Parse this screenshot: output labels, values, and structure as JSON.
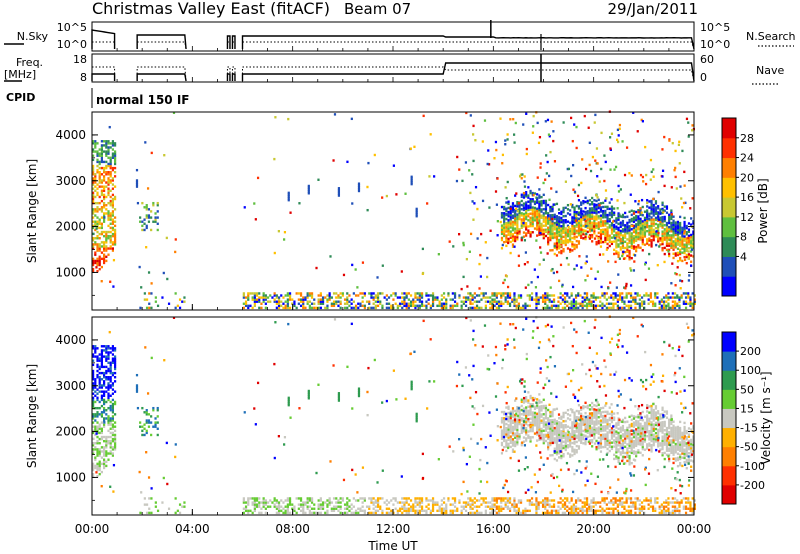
{
  "header": {
    "station": "Christmas Valley East (fitACF)",
    "beam": "Beam 07",
    "date": "29/Jan/2011"
  },
  "noise_panel": {
    "left_label": "N.Sky",
    "left_ticks": [
      "10^5",
      "10^0"
    ],
    "right_ticks": [
      "10^5",
      "10^0"
    ],
    "right_label": "N.Search"
  },
  "freq_panel": {
    "left_label_1": "Freq.",
    "left_label_2": "[MHz]",
    "left_ticks": [
      "18",
      "8"
    ],
    "right_ticks": [
      "60",
      "0"
    ],
    "right_label": "Nave"
  },
  "cpid": {
    "label": "CPID",
    "value": "normal 150 IF"
  },
  "x_axis": {
    "label": "Time UT",
    "ticks": [
      "00:00",
      "04:00",
      "08:00",
      "12:00",
      "16:00",
      "20:00",
      "00:00"
    ]
  },
  "colors": {
    "power": [
      "#0000ff",
      "#1f4fb8",
      "#2e8b57",
      "#5fbf3f",
      "#c8c832",
      "#ffc000",
      "#ff7f00",
      "#ff3000",
      "#e00000"
    ],
    "velocity": [
      "#0000ff",
      "#1e6fb8",
      "#2e9b4f",
      "#66cc33",
      "#c8c8c0",
      "#ffb000",
      "#ff7f00",
      "#ff3000",
      "#e00000"
    ]
  },
  "chart_data": [
    {
      "type": "heatmap",
      "name": "power-panel",
      "xlabel": "",
      "ylabel": "Slant Range [km]",
      "yticks": [
        "4000",
        "3000",
        "2000",
        "1000"
      ],
      "xlim_hours": [
        0,
        24
      ],
      "ylim_km": [
        180,
        4500
      ],
      "colorbar_label": "Power [dB]",
      "colorbar_ticks": [
        "28",
        "24",
        "20",
        "16",
        "12",
        "8",
        "4"
      ],
      "colorbar_range": [
        0,
        32
      ]
    },
    {
      "type": "heatmap",
      "name": "velocity-panel",
      "xlabel": "Time UT",
      "ylabel": "Slant Range [km]",
      "yticks": [
        "4000",
        "3000",
        "2000",
        "1000"
      ],
      "xlim_hours": [
        0,
        24
      ],
      "ylim_km": [
        180,
        4500
      ],
      "colorbar_label": "Velocity [m s⁻¹]",
      "colorbar_ticks": [
        "200",
        "100",
        "50",
        "15",
        "-15",
        "-50",
        "-100",
        "-200"
      ]
    }
  ]
}
